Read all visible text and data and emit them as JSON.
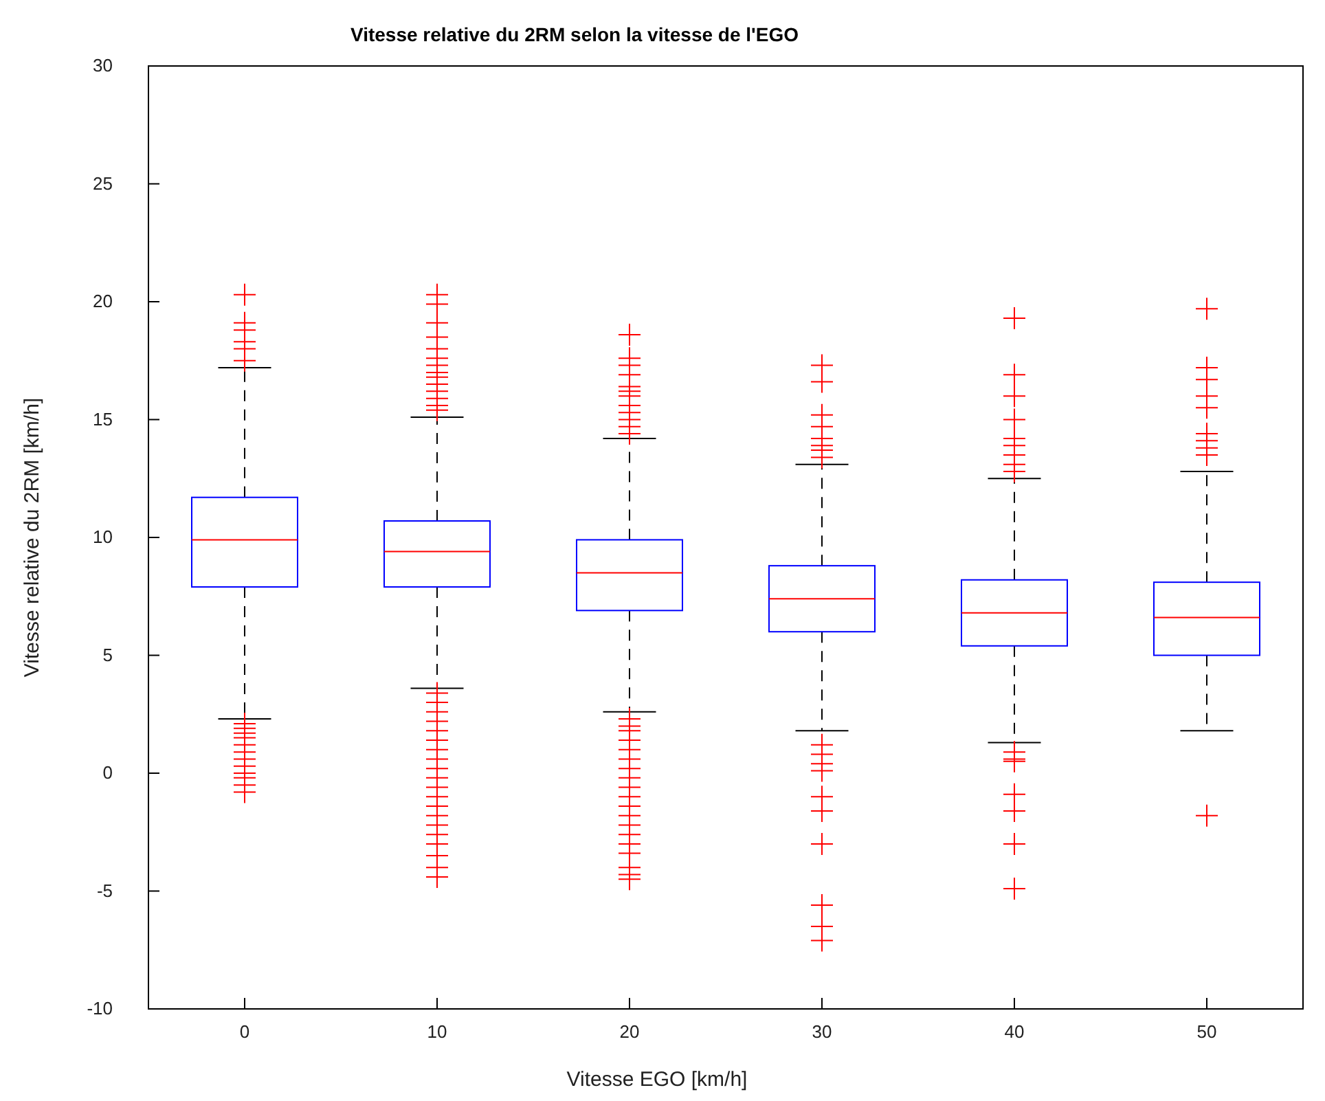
{
  "chart_data": {
    "type": "box",
    "title": "Vitesse relative du 2RM selon la vitesse de l'EGO",
    "xlabel": "Vitesse EGO [km/h]",
    "ylabel": "Vitesse relative du 2RM [km/h]",
    "categories": [
      "0",
      "10",
      "20",
      "30",
      "40",
      "50"
    ],
    "ylim": [
      -10,
      30
    ],
    "yticks": [
      -10,
      -5,
      0,
      5,
      10,
      15,
      20,
      25,
      30
    ],
    "series": [
      {
        "color": "#0000ff",
        "boxes": [
          {
            "low": 2.3,
            "q1": 7.9,
            "median": 9.9,
            "q3": 11.7,
            "high": 17.2,
            "outliers": [
              20.3,
              19.1,
              18.8,
              18.3,
              18.0,
              17.5,
              2.1,
              1.9,
              1.7,
              1.5,
              1.2,
              0.9,
              0.6,
              0.3,
              0,
              -0.2,
              -0.5,
              -0.8
            ]
          },
          {
            "low": 3.6,
            "q1": 7.9,
            "median": 9.4,
            "q3": 10.7,
            "high": 15.1,
            "outliers": [
              20.3,
              19.9,
              19.1,
              18.5,
              18.0,
              17.6,
              17.3,
              17.0,
              16.8,
              16.5,
              16.2,
              15.9,
              15.6,
              15.4,
              3.4,
              3.0,
              2.6,
              2.2,
              1.8,
              1.4,
              1.0,
              0.6,
              0.2,
              -0.2,
              -0.6,
              -1.0,
              -1.4,
              -1.8,
              -2.2,
              -2.6,
              -3.0,
              -3.5,
              -4.0,
              -4.4
            ]
          },
          {
            "low": 2.6,
            "q1": 6.9,
            "median": 8.5,
            "q3": 9.9,
            "high": 14.2,
            "outliers": [
              18.6,
              17.6,
              17.3,
              16.9,
              16.4,
              16.2,
              16.0,
              15.6,
              15.3,
              15.0,
              14.7,
              14.4,
              2.3,
              2.0,
              1.8,
              1.4,
              1.0,
              0.6,
              0.2,
              -0.2,
              -0.6,
              -1.0,
              -1.4,
              -1.8,
              -2.2,
              -2.6,
              -3.0,
              -3.4,
              -4.0,
              -4.3,
              -4.5
            ]
          },
          {
            "low": 1.8,
            "q1": 6.0,
            "median": 7.4,
            "q3": 8.8,
            "high": 13.1,
            "outliers": [
              17.3,
              16.6,
              15.2,
              14.7,
              14.2,
              13.9,
              13.7,
              13.4,
              1.2,
              0.8,
              0.4,
              0.1,
              -1.0,
              -1.6,
              -3.0,
              -5.6,
              -6.5,
              -7.1
            ]
          },
          {
            "low": 1.3,
            "q1": 5.4,
            "median": 6.8,
            "q3": 8.2,
            "high": 12.5,
            "outliers": [
              19.3,
              16.9,
              16.0,
              15.0,
              14.2,
              13.9,
              13.5,
              13.1,
              12.8,
              0.9,
              0.6,
              0.5,
              -0.9,
              -1.6,
              -3.0,
              -4.9
            ]
          },
          {
            "low": 1.8,
            "q1": 5.0,
            "median": 6.6,
            "q3": 8.1,
            "high": 12.8,
            "outliers": [
              19.7,
              17.2,
              16.7,
              16.0,
              15.5,
              14.4,
              14.1,
              13.8,
              13.5,
              -1.8
            ]
          }
        ]
      }
    ]
  }
}
